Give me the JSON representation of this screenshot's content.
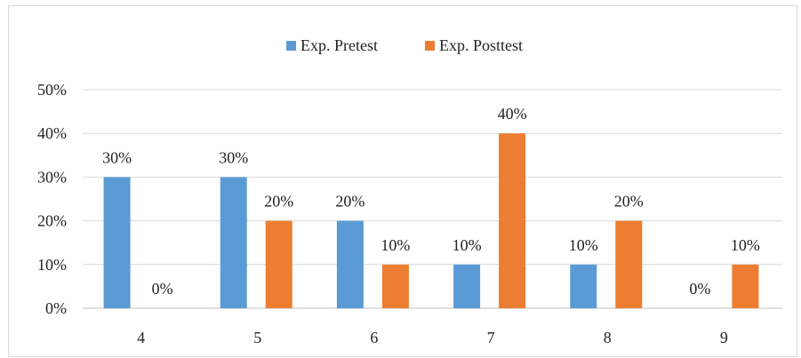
{
  "chart_data": {
    "type": "bar",
    "categories": [
      "4",
      "5",
      "6",
      "7",
      "8",
      "9"
    ],
    "series": [
      {
        "name": "Exp. Pretest",
        "values": [
          30,
          30,
          20,
          10,
          10,
          0
        ],
        "color": "#5b9bd5"
      },
      {
        "name": "Exp. Posttest",
        "values": [
          0,
          20,
          10,
          40,
          20,
          10
        ],
        "color": "#ed7d31"
      }
    ],
    "ylim": [
      0,
      50
    ],
    "yticks": [
      "0%",
      "10%",
      "20%",
      "30%",
      "40%",
      "50%"
    ],
    "value_suffix": "%",
    "grid": true,
    "legend": "top-center"
  }
}
